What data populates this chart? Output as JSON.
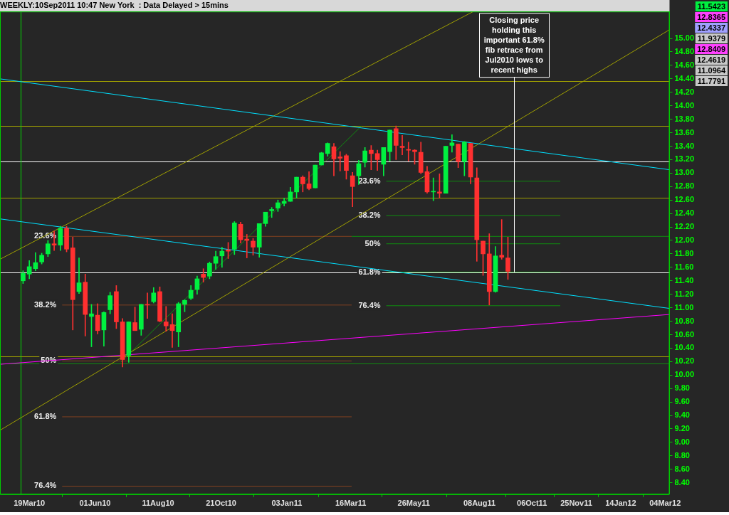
{
  "chart_data": {
    "type": "candlestick",
    "title": "WEEKLY:10Sep2011 10:47 New York  : Data Delayed > 15mins",
    "xlim": [
      "2010-02-14",
      "2012-03-09"
    ],
    "xticks": [
      {
        "value": "2010-03-19",
        "label": "19Mar10"
      },
      {
        "value": "2010-06-01",
        "label": "01Jun10"
      },
      {
        "value": "2010-08-11",
        "label": "11Aug10"
      },
      {
        "value": "2010-10-21",
        "label": "21Oct10"
      },
      {
        "value": "2011-01-03",
        "label": "03Jan11"
      },
      {
        "value": "2011-03-16",
        "label": "16Mar11"
      },
      {
        "value": "2011-05-26",
        "label": "26May11"
      },
      {
        "value": "2011-08-08",
        "label": "08Aug11"
      },
      {
        "value": "2011-10-06",
        "label": "06Oct11"
      },
      {
        "value": "2011-11-25",
        "label": "25Nov11"
      },
      {
        "value": "2012-01-14",
        "label": "14Jan12"
      },
      {
        "value": "2012-03-04",
        "label": "04Mar12"
      }
    ],
    "ylim": [
      8.23,
      15.4
    ],
    "yticks": [
      {
        "value": 8.4,
        "label": "8.40"
      },
      {
        "value": 8.6,
        "label": "8.60"
      },
      {
        "value": 8.8,
        "label": "8.80"
      },
      {
        "value": 9,
        "label": "9.00"
      },
      {
        "value": 9.2,
        "label": "9.20"
      },
      {
        "value": 9.4,
        "label": "9.40"
      },
      {
        "value": 9.6,
        "label": "9.60"
      },
      {
        "value": 9.8,
        "label": "9.80"
      },
      {
        "value": 10,
        "label": "10.00"
      },
      {
        "value": 10.2,
        "label": "10.20"
      },
      {
        "value": 10.4,
        "label": "10.40"
      },
      {
        "value": 10.6,
        "label": "10.60"
      },
      {
        "value": 10.8,
        "label": "10.80"
      },
      {
        "value": 11,
        "label": "11.00"
      },
      {
        "value": 11.2,
        "label": "11.20"
      },
      {
        "value": 11.4,
        "label": "11.40"
      },
      {
        "value": 11.6,
        "label": "11.60"
      },
      {
        "value": 11.8,
        "label": "11.80"
      },
      {
        "value": 12,
        "label": "12.00"
      },
      {
        "value": 12.2,
        "label": "12.20"
      },
      {
        "value": 12.4,
        "label": "12.40"
      },
      {
        "value": 12.6,
        "label": "12.60"
      },
      {
        "value": 12.8,
        "label": "12.80"
      },
      {
        "value": 13,
        "label": "13.00"
      },
      {
        "value": 13.2,
        "label": "13.20"
      },
      {
        "value": 13.4,
        "label": "13.40"
      },
      {
        "value": 13.6,
        "label": "13.60"
      },
      {
        "value": 13.8,
        "label": "13.80"
      },
      {
        "value": 14,
        "label": "14.00"
      },
      {
        "value": 14.2,
        "label": "14.20"
      },
      {
        "value": 14.4,
        "label": "14.40"
      },
      {
        "value": 14.6,
        "label": "14.60"
      },
      {
        "value": 14.8,
        "label": "14.80"
      },
      {
        "value": 15,
        "label": "15.00"
      }
    ],
    "series": [
      {
        "x": [
          "2010-03-12",
          "2010-03-19",
          "2010-03-26",
          "2010-04-02",
          "2010-04-09",
          "2010-04-16",
          "2010-04-23",
          "2010-04-30",
          "2010-05-07",
          "2010-05-14",
          "2010-05-21",
          "2010-05-28",
          "2010-06-04",
          "2010-06-11",
          "2010-06-18",
          "2010-06-25",
          "2010-07-02",
          "2010-07-09",
          "2010-07-16",
          "2010-07-23",
          "2010-07-30",
          "2010-08-06",
          "2010-08-13",
          "2010-08-20",
          "2010-08-27",
          "2010-09-03",
          "2010-09-10",
          "2010-09-17",
          "2010-09-24",
          "2010-10-01",
          "2010-10-08",
          "2010-10-15",
          "2010-10-22",
          "2010-10-29",
          "2010-11-05",
          "2010-11-12",
          "2010-11-19",
          "2010-11-26",
          "2010-12-03",
          "2010-12-10",
          "2010-12-17",
          "2010-12-24",
          "2010-12-31",
          "2011-01-07",
          "2011-01-14",
          "2011-01-21",
          "2011-01-28",
          "2011-02-04",
          "2011-02-11",
          "2011-02-18",
          "2011-02-25",
          "2011-03-04",
          "2011-03-11",
          "2011-03-18",
          "2011-03-25",
          "2011-04-01",
          "2011-04-08",
          "2011-04-15",
          "2011-04-22",
          "2011-04-29",
          "2011-05-06",
          "2011-05-13",
          "2011-05-20",
          "2011-05-27",
          "2011-06-03",
          "2011-06-10",
          "2011-06-17",
          "2011-06-24",
          "2011-07-01",
          "2011-07-08",
          "2011-07-15",
          "2011-07-22",
          "2011-07-29",
          "2011-08-05",
          "2011-08-12",
          "2011-08-19",
          "2011-08-26",
          "2011-09-02",
          "2011-09-09"
        ],
        "ohlc": [
          [
            11.4,
            11.55,
            11.36,
            11.51
          ],
          [
            11.5,
            11.7,
            11.43,
            11.61
          ],
          [
            11.58,
            11.82,
            11.55,
            11.67
          ],
          [
            11.68,
            11.81,
            11.65,
            11.78
          ],
          [
            11.8,
            12.0,
            11.76,
            11.95
          ],
          [
            11.95,
            12.14,
            11.85,
            11.93
          ],
          [
            11.93,
            12.21,
            11.85,
            12.18
          ],
          [
            12.18,
            12.21,
            11.83,
            11.87
          ],
          [
            11.89,
            12.05,
            10.67,
            11.12
          ],
          [
            11.24,
            11.74,
            11.21,
            11.37
          ],
          [
            11.38,
            11.5,
            10.58,
            10.9
          ],
          [
            10.87,
            11.05,
            10.42,
            10.91
          ],
          [
            10.89,
            11.06,
            10.61,
            10.66
          ],
          [
            10.67,
            10.94,
            10.43,
            10.93
          ],
          [
            10.97,
            11.23,
            10.91,
            11.18
          ],
          [
            11.24,
            11.33,
            10.69,
            10.79
          ],
          [
            10.79,
            10.84,
            10.12,
            10.23
          ],
          [
            10.29,
            10.79,
            10.19,
            10.79
          ],
          [
            10.78,
            11.01,
            10.66,
            10.66
          ],
          [
            10.68,
            11.05,
            10.59,
            11.05
          ],
          [
            11.05,
            11.22,
            10.84,
            11.04
          ],
          [
            11.09,
            11.3,
            11.07,
            11.22
          ],
          [
            11.24,
            11.31,
            10.79,
            10.8
          ],
          [
            10.79,
            11.02,
            10.65,
            10.73
          ],
          [
            10.75,
            10.91,
            10.41,
            10.66
          ],
          [
            10.64,
            11.08,
            10.42,
            11.06
          ],
          [
            11.05,
            11.12,
            10.94,
            11.11
          ],
          [
            11.14,
            11.33,
            11.12,
            11.26
          ],
          [
            11.27,
            11.47,
            11.2,
            11.43
          ],
          [
            11.5,
            11.58,
            11.38,
            11.45
          ],
          [
            11.47,
            11.68,
            11.43,
            11.66
          ],
          [
            11.66,
            11.84,
            11.57,
            11.76
          ],
          [
            11.77,
            11.9,
            11.6,
            11.84
          ],
          [
            11.86,
            11.97,
            11.73,
            11.84
          ],
          [
            11.87,
            12.28,
            11.79,
            12.26
          ],
          [
            12.24,
            12.27,
            11.96,
            12.01
          ],
          [
            12.02,
            12.09,
            11.74,
            12.0
          ],
          [
            11.99,
            12.03,
            11.78,
            11.9
          ],
          [
            11.9,
            12.25,
            11.75,
            12.25
          ],
          [
            12.25,
            12.42,
            12.21,
            12.42
          ],
          [
            12.44,
            12.49,
            12.34,
            12.46
          ],
          [
            12.48,
            12.6,
            12.43,
            12.56
          ],
          [
            12.55,
            12.63,
            12.51,
            12.58
          ],
          [
            12.58,
            12.79,
            12.58,
            12.72
          ],
          [
            12.72,
            12.94,
            12.63,
            12.94
          ],
          [
            12.94,
            12.96,
            12.72,
            12.84
          ],
          [
            12.84,
            13.02,
            12.75,
            12.77
          ],
          [
            12.78,
            13.12,
            12.78,
            13.12
          ],
          [
            13.12,
            13.31,
            13.12,
            13.3
          ],
          [
            13.29,
            13.45,
            13.25,
            13.44
          ],
          [
            13.39,
            13.44,
            12.96,
            13.21
          ],
          [
            13.24,
            13.32,
            13.03,
            13.22
          ],
          [
            13.26,
            13.28,
            12.91,
            13.04
          ],
          [
            12.96,
            13.01,
            12.5,
            12.8
          ],
          [
            12.96,
            13.19,
            12.83,
            13.14
          ],
          [
            13.16,
            13.38,
            13.09,
            13.33
          ],
          [
            13.34,
            13.41,
            13.05,
            13.29
          ],
          [
            13.29,
            13.34,
            13.04,
            13.2
          ],
          [
            13.13,
            13.38,
            12.96,
            13.38
          ],
          [
            13.32,
            13.64,
            13.18,
            13.64
          ],
          [
            13.66,
            13.7,
            13.2,
            13.41
          ],
          [
            13.4,
            13.56,
            13.27,
            13.38
          ],
          [
            13.35,
            13.46,
            13.18,
            13.34
          ],
          [
            13.34,
            13.35,
            13.13,
            13.32
          ],
          [
            13.31,
            13.46,
            12.99,
            13.01
          ],
          [
            13.02,
            13.1,
            12.7,
            12.72
          ],
          [
            12.72,
            12.93,
            12.59,
            12.73
          ],
          [
            12.72,
            12.99,
            12.63,
            12.7
          ],
          [
            12.7,
            13.4,
            12.7,
            13.4
          ],
          [
            13.41,
            13.57,
            13.31,
            13.45
          ],
          [
            13.43,
            13.43,
            13.08,
            13.17
          ],
          [
            13.17,
            13.47,
            12.96,
            13.46
          ],
          [
            13.44,
            13.44,
            12.84,
            12.94
          ],
          [
            12.93,
            13.08,
            11.69,
            12.01
          ],
          [
            11.99,
            11.99,
            11.48,
            11.8
          ],
          [
            11.8,
            12.1,
            11.04,
            11.24
          ],
          [
            11.24,
            11.91,
            11.23,
            11.77
          ],
          [
            11.78,
            12.31,
            11.72,
            11.75
          ],
          [
            11.74,
            12.05,
            11.42,
            11.54
          ]
        ],
        "colors": [
          "#00f040",
          "#00f040",
          "#00f040",
          "#00f040",
          "#00f040",
          "#ff3030",
          "#00f040",
          "#ff3030",
          "#ff3030",
          "#00f040",
          "#ff3030",
          "#00f040",
          "#ff3030",
          "#00f040",
          "#00f040",
          "#ff3030",
          "#ff3030",
          "#00f040",
          "#ff3030",
          "#00f040",
          "#ff3030",
          "#00f040",
          "#ff3030",
          "#ff3030",
          "#ff3030",
          "#00f040",
          "#00f040",
          "#00f040",
          "#00f040",
          "#ff3030",
          "#00f040",
          "#00f040",
          "#00f040",
          "#ff3030",
          "#00f040",
          "#ff3030",
          "#ff3030",
          "#ff3030",
          "#00f040",
          "#00f040",
          "#00f040",
          "#00f040",
          "#00f040",
          "#00f040",
          "#00f040",
          "#ff3030",
          "#ff3030",
          "#00f040",
          "#00f040",
          "#00f040",
          "#ff3030",
          "#ff3030",
          "#ff3030",
          "#ff3030",
          "#00f040",
          "#00f040",
          "#ff3030",
          "#ff3030",
          "#00f040",
          "#00f040",
          "#ff3030",
          "#ff3030",
          "#ff3030",
          "#ff3030",
          "#ff3030",
          "#ff3030",
          "#00f040",
          "#ff3030",
          "#00f040",
          "#00f040",
          "#ff3030",
          "#00f040",
          "#ff3030",
          "#ff3030",
          "#ff3030",
          "#ff3030",
          "#00f040",
          "#ff3030",
          "#ff3030"
        ]
      },
      {
        "type": "line",
        "color": "#00e0ff",
        "x": [
          "2010-02-14",
          "2012-03-09"
        ],
        "values": [
          14.4,
          13.05
        ]
      },
      {
        "type": "line",
        "color": "#00e0ff",
        "x": [
          "2010-02-14",
          "2012-03-09"
        ],
        "values": [
          12.32,
          10.99
        ]
      },
      {
        "type": "line",
        "color": "#a0a000",
        "x": [
          "2010-02-14",
          "2011-08-01"
        ],
        "values": [
          11.72,
          15.4
        ]
      },
      {
        "type": "line",
        "color": "#a0a000",
        "x": [
          "2010-02-14",
          "2012-03-09"
        ],
        "values": [
          9.18,
          15.13
        ]
      },
      {
        "type": "line",
        "color": "#ff00ff",
        "x": [
          "2010-02-14",
          "2012-03-09"
        ],
        "values": [
          10.16,
          10.9
        ]
      },
      {
        "type": "line",
        "color": "#108c10",
        "x": [
          "2010-06-30",
          "2011-03-28"
        ],
        "values": [
          10.19,
          13.7
        ]
      },
      {
        "type": "line",
        "color": "#804020",
        "x": [
          "2010-04-25",
          "2011-03-17"
        ],
        "values": [
          12.06,
          12.06
        ]
      },
      {
        "type": "line",
        "color": "#108c10",
        "x": [
          "2011-03-17",
          "2012-03-09"
        ],
        "values": [
          12.06,
          12.06
        ]
      },
      {
        "type": "line",
        "color": "#804020",
        "x": [
          "2010-04-25",
          "2011-03-17"
        ],
        "values": [
          11.04,
          11.04
        ]
      },
      {
        "type": "line",
        "color": "#804020",
        "x": [
          "2010-04-25",
          "2011-03-17"
        ],
        "values": [
          10.21,
          10.21
        ]
      },
      {
        "type": "line",
        "color": "#804020",
        "x": [
          "2010-04-25",
          "2011-03-17"
        ],
        "values": [
          9.38,
          9.38
        ]
      },
      {
        "type": "line",
        "color": "#804020",
        "x": [
          "2010-04-25",
          "2011-03-17"
        ],
        "values": [
          8.35,
          8.35
        ]
      },
      {
        "type": "line",
        "color": "#108c10",
        "x": [
          "2011-04-25",
          "2011-11-07"
        ],
        "values": [
          12.88,
          12.88
        ]
      },
      {
        "type": "line",
        "color": "#108c10",
        "x": [
          "2011-04-25",
          "2011-11-07"
        ],
        "values": [
          12.37,
          12.37
        ]
      },
      {
        "type": "line",
        "color": "#108c10",
        "x": [
          "2011-04-25",
          "2011-11-07"
        ],
        "values": [
          11.95,
          11.95
        ]
      },
      {
        "type": "line",
        "color": "#108c10",
        "x": [
          "2011-04-25",
          "2011-11-07"
        ],
        "values": [
          11.53,
          11.53
        ]
      },
      {
        "type": "line",
        "color": "#108c10",
        "x": [
          "2011-04-25",
          "2011-11-07"
        ],
        "values": [
          11.03,
          11.03
        ]
      }
    ],
    "ref_lines": [
      {
        "axis": "y",
        "value": 14.37,
        "color": "#a0a000"
      },
      {
        "axis": "y",
        "value": 13.7,
        "color": "#a0a000"
      },
      {
        "axis": "y",
        "value": 13.17,
        "color": "#ffffff"
      },
      {
        "axis": "y",
        "value": 12.63,
        "color": "#a0a000"
      },
      {
        "axis": "y",
        "value": 11.52,
        "color": "#ffffff"
      },
      {
        "axis": "y",
        "value": 10.28,
        "color": "#a0a000"
      },
      {
        "axis": "y",
        "value": 10.17,
        "color": "#108c10"
      },
      {
        "axis": "x",
        "value": "2010-03-09",
        "color": "#00dd00"
      }
    ],
    "annotations": [
      {
        "text": "23.6%",
        "x": "2010-04-25",
        "y": 12.06
      },
      {
        "text": "38.2%",
        "x": "2010-04-25",
        "y": 11.04
      },
      {
        "text": "50%",
        "x": "2010-04-25",
        "y": 10.21
      },
      {
        "text": "61.8%",
        "x": "2010-04-25",
        "y": 9.38
      },
      {
        "text": "76.4%",
        "x": "2010-04-25",
        "y": 8.35
      },
      {
        "text": "23.6%",
        "x": "2011-04-25",
        "y": 12.88
      },
      {
        "text": "38.2%",
        "x": "2011-04-25",
        "y": 12.37
      },
      {
        "text": "50%",
        "x": "2011-04-25",
        "y": 11.95
      },
      {
        "text": "61.8%",
        "x": "2011-04-25",
        "y": 11.53
      },
      {
        "text": "76.4%",
        "x": "2011-04-25",
        "y": 11.03
      },
      {
        "text": "Closing price holding this important 61.8% fib retrace from Jul2010 lows to recent highs",
        "x": "2011-09-16",
        "y": 11.53
      },
      "11.5423",
      "12.8365",
      "12.4337",
      "11.9379",
      "12.8409",
      "12.4619",
      "11.0964",
      "11.7791"
    ]
  }
}
